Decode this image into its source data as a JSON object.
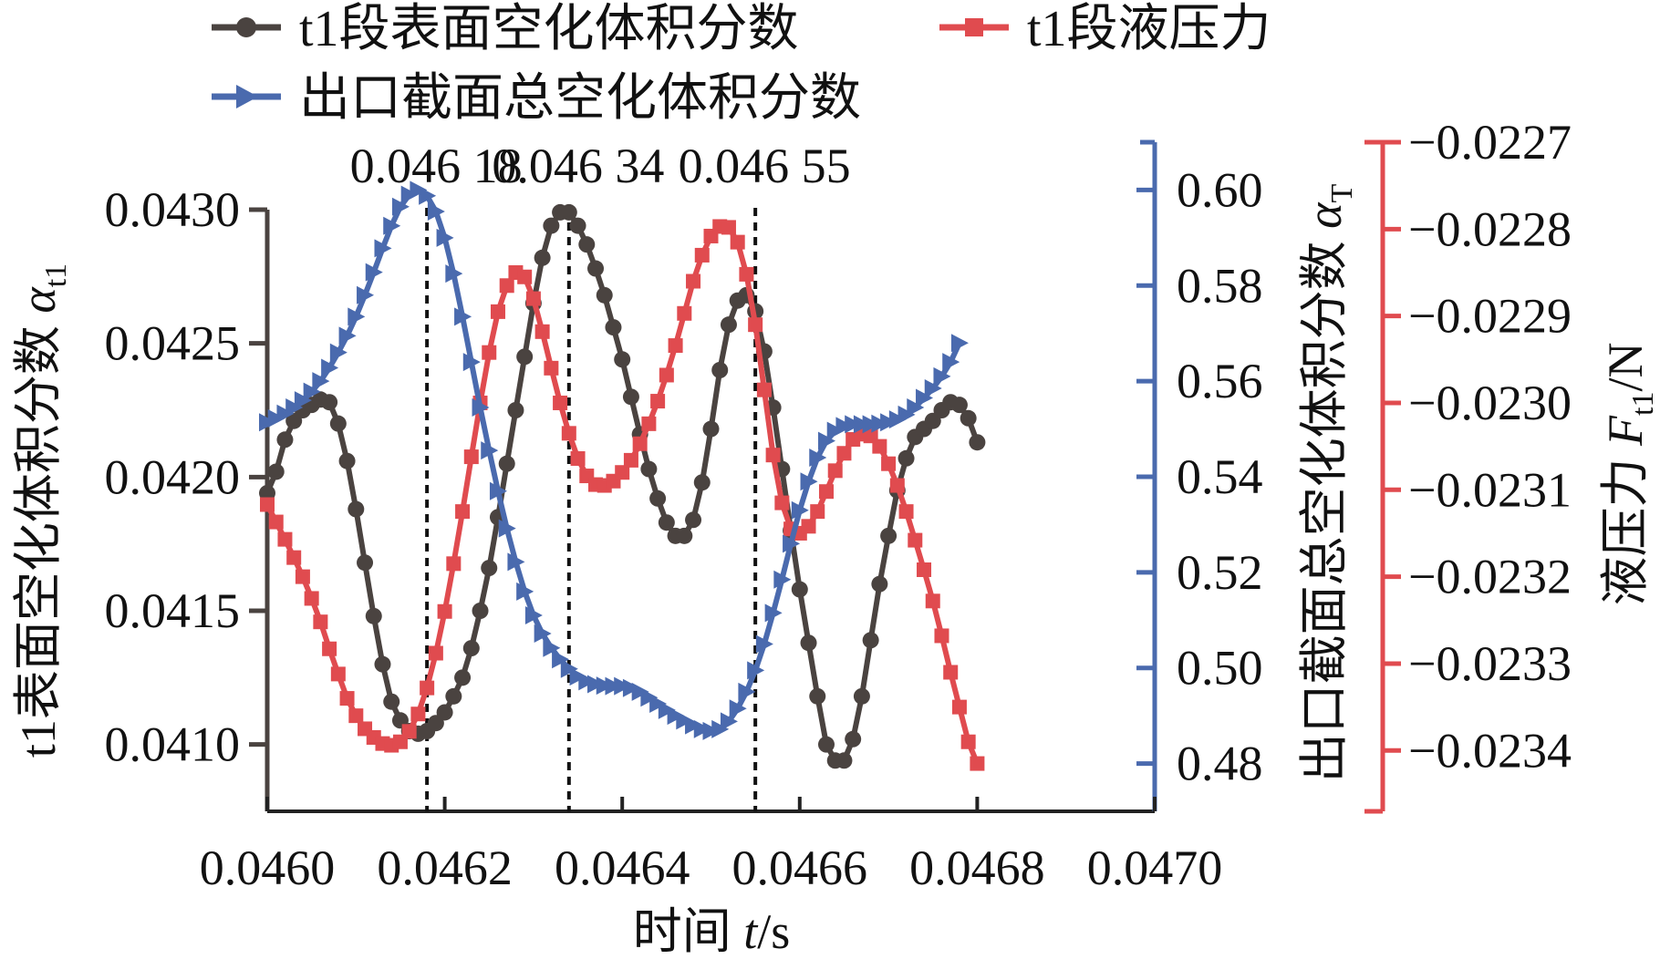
{
  "chart_data": {
    "type": "line",
    "title": "",
    "legend": {
      "placement": "top",
      "entries": [
        {
          "series": "alpha_t1",
          "label": "t1段表面空化体积分数"
        },
        {
          "series": "force",
          "label": "t1段液压力"
        },
        {
          "series": "alpha_T",
          "label": "出口截面总空化体积分数"
        }
      ]
    },
    "x_axis": {
      "label_prefix": "时间 ",
      "label_symbol": "t",
      "label_unit": "/s",
      "range": [
        0.046,
        0.047
      ],
      "ticks": [
        "0.0460",
        "0.0462",
        "0.0464",
        "0.0466",
        "0.0468",
        "0.0470"
      ],
      "tick_values": [
        0.046,
        0.0462,
        0.0464,
        0.0466,
        0.0468,
        0.047
      ]
    },
    "y_axes": {
      "left": {
        "label_text": "t1表面空化体积分数 ",
        "label_symbol": "α",
        "label_sub": "t1",
        "range": [
          0.04075,
          0.043
        ],
        "ticks": [
          "0.0410",
          "0.0415",
          "0.0420",
          "0.0425",
          "0.0430"
        ],
        "tick_values": [
          0.041,
          0.0415,
          0.042,
          0.0425,
          0.043
        ],
        "color": "#4a4340"
      },
      "right1": {
        "label_text": "出口截面总空化体积分数 ",
        "label_symbol": "α",
        "label_sub": "T",
        "range": [
          0.47,
          0.61
        ],
        "ticks": [
          "0.48",
          "0.50",
          "0.52",
          "0.54",
          "0.56",
          "0.58",
          "0.60"
        ],
        "tick_values": [
          0.48,
          0.5,
          0.52,
          0.54,
          0.56,
          0.58,
          0.6
        ],
        "color": "#4a6aae"
      },
      "right2": {
        "label_text": "液压力 ",
        "label_symbol": "F",
        "label_sub": "t1",
        "label_unit": "/N",
        "range": [
          -0.02347,
          -0.0227
        ],
        "ticks": [
          "−0.0234",
          "−0.0233",
          "−0.0232",
          "−0.0231",
          "−0.0230",
          "−0.0229",
          "−0.0228",
          "−0.0227"
        ],
        "tick_values": [
          -0.0234,
          -0.0233,
          -0.0232,
          -0.0231,
          -0.023,
          -0.0229,
          -0.0228,
          -0.0227
        ],
        "color": "#e04b4f"
      }
    },
    "vertical_markers": [
      {
        "x": 0.04618,
        "label": "0.046 18"
      },
      {
        "x": 0.04634,
        "label": "0.046 34"
      },
      {
        "x": 0.04655,
        "label": "0.046 55"
      }
    ],
    "grid": false,
    "series": [
      {
        "id": "alpha_t1",
        "axis": "left",
        "color": "#4a4340",
        "marker": "circle",
        "points": [
          [
            0.046,
            0.04194
          ],
          [
            0.04601,
            0.04202
          ],
          [
            0.04602,
            0.04214
          ],
          [
            0.04603,
            0.04221
          ],
          [
            0.04604,
            0.04225
          ],
          [
            0.04605,
            0.04227
          ],
          [
            0.04606,
            0.04229
          ],
          [
            0.04607,
            0.04228
          ],
          [
            0.04608,
            0.0422
          ],
          [
            0.04609,
            0.04206
          ],
          [
            0.0461,
            0.04188
          ],
          [
            0.04611,
            0.04168
          ],
          [
            0.04612,
            0.04148
          ],
          [
            0.04613,
            0.0413
          ],
          [
            0.04614,
            0.04116
          ],
          [
            0.04615,
            0.04109
          ],
          [
            0.04616,
            0.04105
          ],
          [
            0.04617,
            0.04104
          ],
          [
            0.04618,
            0.04105
          ],
          [
            0.04619,
            0.04108
          ],
          [
            0.0462,
            0.04112
          ],
          [
            0.04621,
            0.04118
          ],
          [
            0.04622,
            0.04125
          ],
          [
            0.04623,
            0.04136
          ],
          [
            0.04624,
            0.0415
          ],
          [
            0.04625,
            0.04166
          ],
          [
            0.04626,
            0.04185
          ],
          [
            0.04627,
            0.04205
          ],
          [
            0.04628,
            0.04225
          ],
          [
            0.04629,
            0.04245
          ],
          [
            0.0463,
            0.04265
          ],
          [
            0.04631,
            0.04282
          ],
          [
            0.04632,
            0.04294
          ],
          [
            0.04633,
            0.04299
          ],
          [
            0.04634,
            0.04299
          ],
          [
            0.04635,
            0.04294
          ],
          [
            0.04636,
            0.04287
          ],
          [
            0.04637,
            0.04278
          ],
          [
            0.04638,
            0.04268
          ],
          [
            0.04639,
            0.04256
          ],
          [
            0.0464,
            0.04244
          ],
          [
            0.04641,
            0.0423
          ],
          [
            0.04642,
            0.04216
          ],
          [
            0.04643,
            0.04203
          ],
          [
            0.04644,
            0.04192
          ],
          [
            0.04645,
            0.04183
          ],
          [
            0.04646,
            0.04178
          ],
          [
            0.04647,
            0.04178
          ],
          [
            0.04648,
            0.04184
          ],
          [
            0.04649,
            0.04198
          ],
          [
            0.0465,
            0.04218
          ],
          [
            0.04651,
            0.0424
          ],
          [
            0.04652,
            0.04257
          ],
          [
            0.04653,
            0.04266
          ],
          [
            0.04654,
            0.04268
          ],
          [
            0.04655,
            0.04262
          ],
          [
            0.04656,
            0.04247
          ],
          [
            0.04657,
            0.04226
          ],
          [
            0.04658,
            0.04203
          ],
          [
            0.04659,
            0.0418
          ],
          [
            0.0466,
            0.04158
          ],
          [
            0.04661,
            0.04138
          ],
          [
            0.04662,
            0.04118
          ],
          [
            0.04663,
            0.041
          ],
          [
            0.04664,
            0.04094
          ],
          [
            0.04665,
            0.04094
          ],
          [
            0.04666,
            0.04102
          ],
          [
            0.04667,
            0.04118
          ],
          [
            0.04668,
            0.04139
          ],
          [
            0.04669,
            0.0416
          ],
          [
            0.0467,
            0.04178
          ],
          [
            0.04671,
            0.04195
          ],
          [
            0.04672,
            0.04207
          ],
          [
            0.04673,
            0.04215
          ],
          [
            0.04674,
            0.04218
          ],
          [
            0.04675,
            0.04221
          ],
          [
            0.04676,
            0.04225
          ],
          [
            0.04677,
            0.04228
          ],
          [
            0.04678,
            0.04227
          ],
          [
            0.04679,
            0.04222
          ],
          [
            0.0468,
            0.04213
          ]
        ]
      },
      {
        "id": "force",
        "axis": "right2",
        "color": "#e04b4f",
        "marker": "square",
        "points": [
          [
            0.046,
            -0.023117
          ],
          [
            0.04601,
            -0.023137
          ],
          [
            0.04602,
            -0.023157
          ],
          [
            0.04603,
            -0.023178
          ],
          [
            0.04604,
            -0.0232
          ],
          [
            0.04605,
            -0.023225
          ],
          [
            0.04606,
            -0.023252
          ],
          [
            0.04607,
            -0.023283
          ],
          [
            0.04608,
            -0.023312
          ],
          [
            0.04609,
            -0.02334
          ],
          [
            0.0461,
            -0.02336
          ],
          [
            0.04611,
            -0.023375
          ],
          [
            0.04612,
            -0.023385
          ],
          [
            0.04613,
            -0.023392
          ],
          [
            0.04614,
            -0.023394
          ],
          [
            0.04615,
            -0.02339
          ],
          [
            0.04616,
            -0.023378
          ],
          [
            0.04617,
            -0.023358
          ],
          [
            0.04618,
            -0.023328
          ],
          [
            0.04619,
            -0.023288
          ],
          [
            0.0462,
            -0.02324
          ],
          [
            0.04621,
            -0.023185
          ],
          [
            0.04622,
            -0.023125
          ],
          [
            0.04623,
            -0.023062
          ],
          [
            0.04624,
            -0.023
          ],
          [
            0.04625,
            -0.022942
          ],
          [
            0.04626,
            -0.022895
          ],
          [
            0.04627,
            -0.022865
          ],
          [
            0.04628,
            -0.02285
          ],
          [
            0.04629,
            -0.022855
          ],
          [
            0.0463,
            -0.02288
          ],
          [
            0.04631,
            -0.022918
          ],
          [
            0.04632,
            -0.02296
          ],
          [
            0.04633,
            -0.023
          ],
          [
            0.04634,
            -0.023035
          ],
          [
            0.04635,
            -0.023064
          ],
          [
            0.04636,
            -0.023084
          ],
          [
            0.04637,
            -0.023094
          ],
          [
            0.04638,
            -0.023095
          ],
          [
            0.04639,
            -0.02309
          ],
          [
            0.0464,
            -0.02308
          ],
          [
            0.04641,
            -0.023066
          ],
          [
            0.04642,
            -0.023047
          ],
          [
            0.04643,
            -0.023024
          ],
          [
            0.04644,
            -0.022998
          ],
          [
            0.04645,
            -0.022968
          ],
          [
            0.04646,
            -0.022934
          ],
          [
            0.04647,
            -0.022897
          ],
          [
            0.04648,
            -0.02286
          ],
          [
            0.04649,
            -0.02283
          ],
          [
            0.0465,
            -0.022808
          ],
          [
            0.04651,
            -0.022797
          ],
          [
            0.04652,
            -0.022798
          ],
          [
            0.04653,
            -0.022815
          ],
          [
            0.04654,
            -0.022852
          ],
          [
            0.04655,
            -0.02291
          ],
          [
            0.04656,
            -0.022985
          ],
          [
            0.04657,
            -0.02306
          ],
          [
            0.04658,
            -0.023115
          ],
          [
            0.04659,
            -0.023145
          ],
          [
            0.0466,
            -0.02315
          ],
          [
            0.04661,
            -0.023142
          ],
          [
            0.04662,
            -0.023125
          ],
          [
            0.04663,
            -0.023102
          ],
          [
            0.04664,
            -0.023078
          ],
          [
            0.04665,
            -0.023058
          ],
          [
            0.04666,
            -0.023042
          ],
          [
            0.04667,
            -0.023036
          ],
          [
            0.04668,
            -0.023038
          ],
          [
            0.04669,
            -0.02305
          ],
          [
            0.0467,
            -0.02307
          ],
          [
            0.04671,
            -0.023095
          ],
          [
            0.04672,
            -0.023125
          ],
          [
            0.04673,
            -0.023158
          ],
          [
            0.04674,
            -0.023192
          ],
          [
            0.04675,
            -0.023228
          ],
          [
            0.04676,
            -0.023268
          ],
          [
            0.04677,
            -0.02331
          ],
          [
            0.04678,
            -0.02335
          ],
          [
            0.04679,
            -0.02339
          ],
          [
            0.0468,
            -0.023415
          ]
        ]
      },
      {
        "id": "alpha_T",
        "axis": "right1",
        "color": "#4a6aae",
        "marker": "triangle-right",
        "points": [
          [
            0.046,
            0.5514
          ],
          [
            0.04601,
            0.5522
          ],
          [
            0.04602,
            0.5532
          ],
          [
            0.04603,
            0.5545
          ],
          [
            0.04604,
            0.556
          ],
          [
            0.04605,
            0.5578
          ],
          [
            0.04606,
            0.56
          ],
          [
            0.04607,
            0.5628
          ],
          [
            0.04608,
            0.566
          ],
          [
            0.04609,
            0.5695
          ],
          [
            0.0461,
            0.5735
          ],
          [
            0.04611,
            0.578
          ],
          [
            0.04612,
            0.5828
          ],
          [
            0.04613,
            0.5878
          ],
          [
            0.04614,
            0.5925
          ],
          [
            0.04615,
            0.5965
          ],
          [
            0.04616,
            0.599
          ],
          [
            0.04617,
            0.6
          ],
          [
            0.04618,
            0.5988
          ],
          [
            0.04619,
            0.5955
          ],
          [
            0.0462,
            0.59
          ],
          [
            0.04621,
            0.5825
          ],
          [
            0.04622,
            0.5735
          ],
          [
            0.04623,
            0.564
          ],
          [
            0.04624,
            0.5545
          ],
          [
            0.04625,
            0.5455
          ],
          [
            0.04626,
            0.537
          ],
          [
            0.04627,
            0.5292
          ],
          [
            0.04628,
            0.5222
          ],
          [
            0.04629,
            0.516
          ],
          [
            0.0463,
            0.511
          ],
          [
            0.04631,
            0.5072
          ],
          [
            0.04632,
            0.5042
          ],
          [
            0.04633,
            0.5018
          ],
          [
            0.04634,
            0.4998
          ],
          [
            0.04635,
            0.4982
          ],
          [
            0.04636,
            0.4972
          ],
          [
            0.04637,
            0.4966
          ],
          [
            0.04638,
            0.4963
          ],
          [
            0.04639,
            0.4962
          ],
          [
            0.0464,
            0.4962
          ],
          [
            0.04641,
            0.4958
          ],
          [
            0.04642,
            0.495
          ],
          [
            0.04643,
            0.4938
          ],
          [
            0.04644,
            0.4925
          ],
          [
            0.04645,
            0.4912
          ],
          [
            0.04646,
            0.49
          ],
          [
            0.04647,
            0.489
          ],
          [
            0.04648,
            0.488
          ],
          [
            0.04649,
            0.4872
          ],
          [
            0.0465,
            0.4868
          ],
          [
            0.04651,
            0.4872
          ],
          [
            0.04652,
            0.4888
          ],
          [
            0.04653,
            0.4915
          ],
          [
            0.04654,
            0.495
          ],
          [
            0.04655,
            0.4995
          ],
          [
            0.04656,
            0.505
          ],
          [
            0.04657,
            0.5115
          ],
          [
            0.04658,
            0.5185
          ],
          [
            0.04659,
            0.526
          ],
          [
            0.0466,
            0.533
          ],
          [
            0.04661,
            0.539
          ],
          [
            0.04662,
            0.544
          ],
          [
            0.04663,
            0.5475
          ],
          [
            0.04664,
            0.5496
          ],
          [
            0.04665,
            0.5506
          ],
          [
            0.04666,
            0.551
          ],
          [
            0.04667,
            0.551
          ],
          [
            0.04668,
            0.551
          ],
          [
            0.04669,
            0.5511
          ],
          [
            0.0467,
            0.5514
          ],
          [
            0.04671,
            0.552
          ],
          [
            0.04672,
            0.553
          ],
          [
            0.04673,
            0.5545
          ],
          [
            0.04674,
            0.5565
          ],
          [
            0.04675,
            0.5585
          ],
          [
            0.04676,
            0.561
          ],
          [
            0.04677,
            0.564
          ],
          [
            0.04678,
            0.568
          ]
        ]
      }
    ]
  }
}
